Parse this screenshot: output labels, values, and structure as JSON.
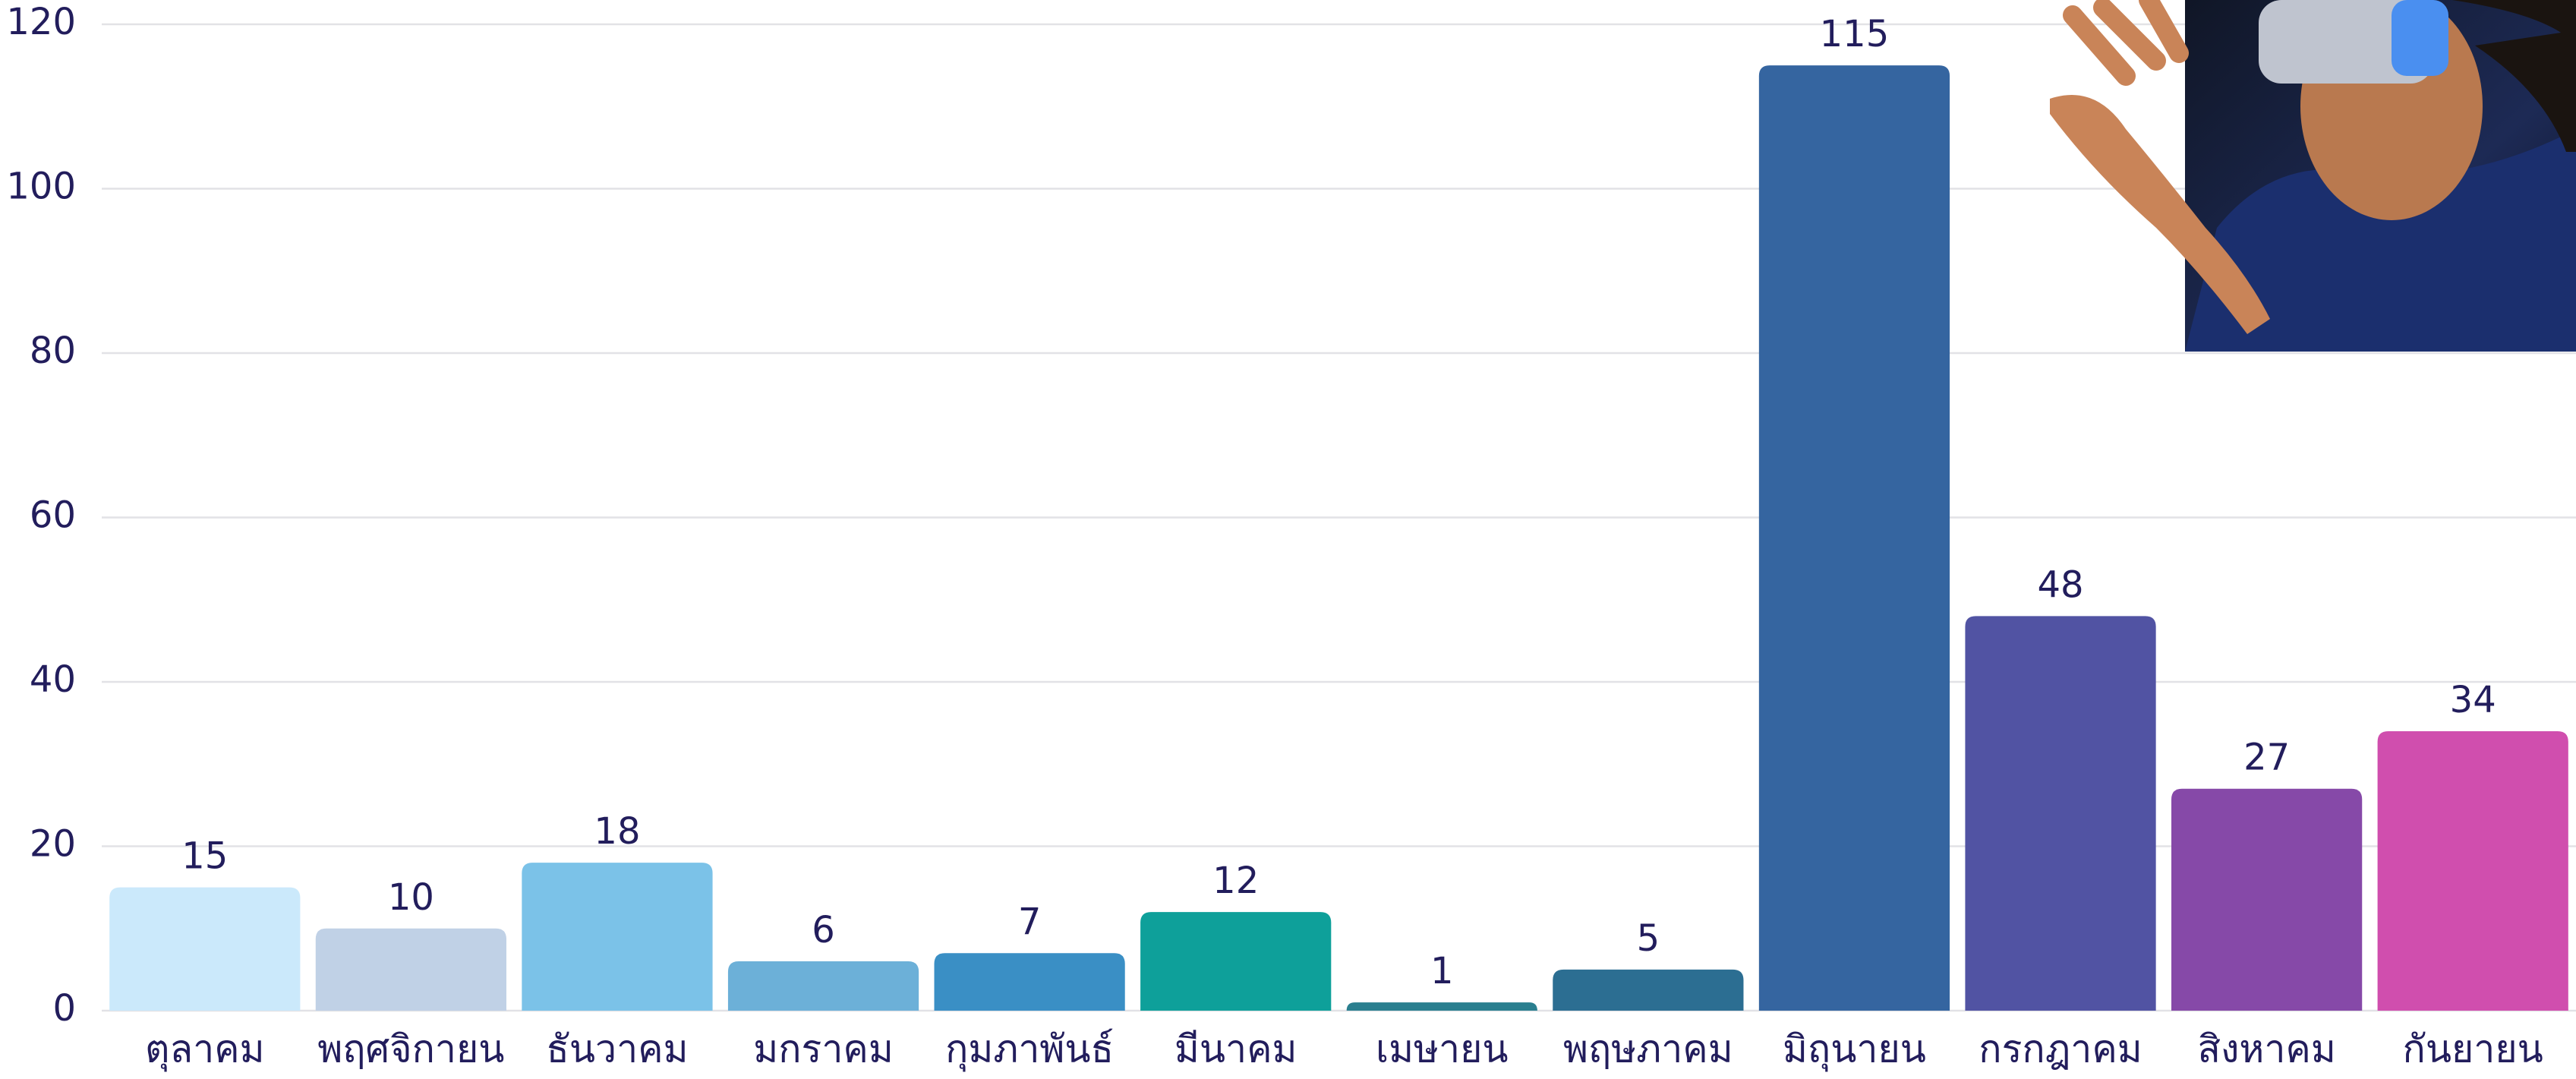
{
  "chart_data": {
    "type": "bar",
    "categories": [
      "ตุลาคม",
      "พฤศจิกายน",
      "ธันวาคม",
      "มกราคม",
      "กุมภาพันธ์",
      "มีนาคม",
      "เมษายน",
      "พฤษภาคม",
      "มิถุนายน",
      "กรกฎาคม",
      "สิงหาคม",
      "กันยายน"
    ],
    "values": [
      15,
      10,
      18,
      6,
      7,
      12,
      1,
      5,
      115,
      48,
      27,
      34
    ],
    "colors": [
      "#cbe9fb",
      "#c0d1e6",
      "#7bc2e8",
      "#6cb0d8",
      "#3a8fc5",
      "#0ea09a",
      "#2a7f8f",
      "#2c6e92",
      "#3565a0",
      "#5153a3",
      "#8649a8",
      "#d04eae"
    ],
    "ylim": [
      0,
      120
    ],
    "yticks": [
      0,
      20,
      40,
      60,
      80,
      100,
      120
    ],
    "grid": true,
    "value_labels_shown": true
  }
}
